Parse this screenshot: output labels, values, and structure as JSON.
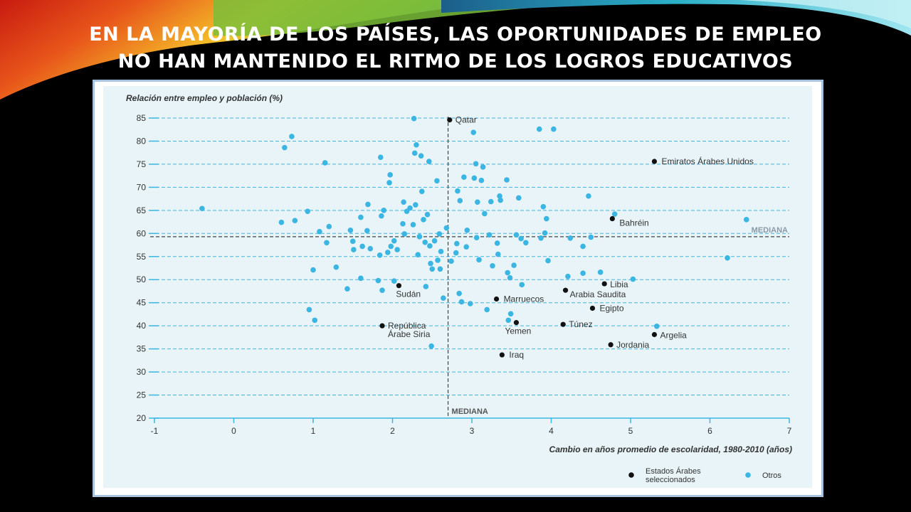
{
  "slide": {
    "title_line1": "EN LA MAYORÍA DE LOS PAÍSES, LAS OPORTUNIDADES DE EMPLEO",
    "title_line2": "NO HAN MANTENIDO EL RITMO DE LOS LOGROS EDUCATIVOS"
  },
  "chart_data": {
    "type": "scatter",
    "ylabel": "Relación entre empleo y población (%)",
    "xlabel": "Cambio en años promedio de escolaridad, 1980-2010 (años)",
    "xlim": [
      -1,
      7
    ],
    "ylim": [
      20,
      85
    ],
    "x_ticks": [
      -1,
      0,
      1,
      2,
      3,
      4,
      5,
      6,
      7
    ],
    "y_ticks": [
      20,
      25,
      30,
      35,
      40,
      45,
      50,
      55,
      60,
      65,
      70,
      75,
      80,
      85
    ],
    "grid": "horizontal dashed",
    "median_x": 2.7,
    "median_y": 59.3,
    "median_x_label": "MEDIANA",
    "median_y_label": "MEDIANA",
    "legend_position": "bottom-right",
    "series": [
      {
        "name": "Estados Árabes seleccionados",
        "legend_lines": [
          "Estados Árabes",
          "seleccionados"
        ],
        "color": "#111111",
        "points": [
          {
            "x": 2.72,
            "y": 84.6,
            "label": "Qatar"
          },
          {
            "x": 5.3,
            "y": 75.6,
            "label": "Emiratos Árabes Unidos"
          },
          {
            "x": 4.77,
            "y": 63.2,
            "label": "Bahréin"
          },
          {
            "x": 4.67,
            "y": 49.1,
            "label": "Libia"
          },
          {
            "x": 4.18,
            "y": 47.7,
            "label": "Arabia Saudita"
          },
          {
            "x": 2.08,
            "y": 48.7,
            "label": "Sudán"
          },
          {
            "x": 3.31,
            "y": 45.8,
            "label": "Marruecos"
          },
          {
            "x": 4.52,
            "y": 43.8,
            "label": "Egipto"
          },
          {
            "x": 1.87,
            "y": 40.0,
            "label": "República Árabe Siria",
            "label_lines": [
              "República",
              "Árabe Siria"
            ]
          },
          {
            "x": 3.56,
            "y": 40.7,
            "label": "Yemen"
          },
          {
            "x": 4.15,
            "y": 40.3,
            "label": "Túnez"
          },
          {
            "x": 5.3,
            "y": 38.1,
            "label": "Argelia"
          },
          {
            "x": 4.75,
            "y": 35.9,
            "label": "Jordania"
          },
          {
            "x": 3.38,
            "y": 33.7,
            "label": "Iraq"
          }
        ]
      },
      {
        "name": "Otros",
        "legend_lines": [
          "Otros"
        ],
        "color": "#3bb6e3",
        "points": [
          {
            "x": -0.4,
            "y": 65.4
          },
          {
            "x": 0.6,
            "y": 62.4
          },
          {
            "x": 0.64,
            "y": 78.6
          },
          {
            "x": 0.73,
            "y": 81.0
          },
          {
            "x": 0.77,
            "y": 62.8
          },
          {
            "x": 0.93,
            "y": 64.8
          },
          {
            "x": 0.95,
            "y": 43.5
          },
          {
            "x": 1.0,
            "y": 52.1
          },
          {
            "x": 1.02,
            "y": 41.2
          },
          {
            "x": 1.08,
            "y": 60.4
          },
          {
            "x": 1.15,
            "y": 75.3
          },
          {
            "x": 1.17,
            "y": 58.0
          },
          {
            "x": 1.2,
            "y": 61.5
          },
          {
            "x": 1.29,
            "y": 52.7
          },
          {
            "x": 1.43,
            "y": 48.0
          },
          {
            "x": 1.47,
            "y": 60.7
          },
          {
            "x": 1.5,
            "y": 58.3
          },
          {
            "x": 1.51,
            "y": 56.5
          },
          {
            "x": 1.6,
            "y": 63.5
          },
          {
            "x": 1.6,
            "y": 50.3
          },
          {
            "x": 1.62,
            "y": 57.2
          },
          {
            "x": 1.68,
            "y": 60.6
          },
          {
            "x": 1.69,
            "y": 66.3
          },
          {
            "x": 1.72,
            "y": 56.7
          },
          {
            "x": 1.82,
            "y": 49.8
          },
          {
            "x": 1.84,
            "y": 55.3
          },
          {
            "x": 1.85,
            "y": 76.5
          },
          {
            "x": 1.86,
            "y": 63.8
          },
          {
            "x": 1.87,
            "y": 47.7
          },
          {
            "x": 1.89,
            "y": 65.0
          },
          {
            "x": 1.94,
            "y": 55.9
          },
          {
            "x": 1.96,
            "y": 71.0
          },
          {
            "x": 1.97,
            "y": 72.7
          },
          {
            "x": 1.98,
            "y": 57.2
          },
          {
            "x": 2.02,
            "y": 58.4
          },
          {
            "x": 2.02,
            "y": 49.7
          },
          {
            "x": 2.06,
            "y": 56.5
          },
          {
            "x": 2.13,
            "y": 62.1
          },
          {
            "x": 2.14,
            "y": 66.8
          },
          {
            "x": 2.15,
            "y": 59.9
          },
          {
            "x": 2.18,
            "y": 64.8
          },
          {
            "x": 2.22,
            "y": 65.5
          },
          {
            "x": 2.26,
            "y": 61.9
          },
          {
            "x": 2.27,
            "y": 84.9
          },
          {
            "x": 2.28,
            "y": 77.4
          },
          {
            "x": 2.29,
            "y": 66.2
          },
          {
            "x": 2.3,
            "y": 79.2
          },
          {
            "x": 2.32,
            "y": 55.4
          },
          {
            "x": 2.34,
            "y": 59.3
          },
          {
            "x": 2.36,
            "y": 76.8
          },
          {
            "x": 2.37,
            "y": 69.1
          },
          {
            "x": 2.39,
            "y": 63.0
          },
          {
            "x": 2.41,
            "y": 58.1
          },
          {
            "x": 2.42,
            "y": 48.5
          },
          {
            "x": 2.44,
            "y": 64.1
          },
          {
            "x": 2.46,
            "y": 75.6
          },
          {
            "x": 2.47,
            "y": 57.3
          },
          {
            "x": 2.48,
            "y": 53.5
          },
          {
            "x": 2.49,
            "y": 35.6
          },
          {
            "x": 2.5,
            "y": 52.3
          },
          {
            "x": 2.53,
            "y": 58.4
          },
          {
            "x": 2.56,
            "y": 71.4
          },
          {
            "x": 2.57,
            "y": 54.2
          },
          {
            "x": 2.59,
            "y": 59.9
          },
          {
            "x": 2.6,
            "y": 52.3
          },
          {
            "x": 2.61,
            "y": 56.1
          },
          {
            "x": 2.64,
            "y": 46.0
          },
          {
            "x": 2.68,
            "y": 61.2
          },
          {
            "x": 2.74,
            "y": 54.0
          },
          {
            "x": 2.8,
            "y": 55.8
          },
          {
            "x": 2.81,
            "y": 57.8
          },
          {
            "x": 2.82,
            "y": 69.2
          },
          {
            "x": 2.84,
            "y": 47.0
          },
          {
            "x": 2.85,
            "y": 67.1
          },
          {
            "x": 2.87,
            "y": 45.2
          },
          {
            "x": 2.9,
            "y": 72.2
          },
          {
            "x": 2.93,
            "y": 57.1
          },
          {
            "x": 2.94,
            "y": 60.7
          },
          {
            "x": 2.98,
            "y": 44.8
          },
          {
            "x": 3.02,
            "y": 81.9
          },
          {
            "x": 3.03,
            "y": 72.0
          },
          {
            "x": 3.05,
            "y": 75.1
          },
          {
            "x": 3.06,
            "y": 59.1
          },
          {
            "x": 3.07,
            "y": 66.8
          },
          {
            "x": 3.09,
            "y": 54.3
          },
          {
            "x": 3.12,
            "y": 71.5
          },
          {
            "x": 3.14,
            "y": 74.4
          },
          {
            "x": 3.16,
            "y": 64.3
          },
          {
            "x": 3.19,
            "y": 43.5
          },
          {
            "x": 3.22,
            "y": 59.7
          },
          {
            "x": 3.24,
            "y": 66.9
          },
          {
            "x": 3.26,
            "y": 53.0
          },
          {
            "x": 3.32,
            "y": 57.9
          },
          {
            "x": 3.33,
            "y": 55.5
          },
          {
            "x": 3.35,
            "y": 68.1
          },
          {
            "x": 3.36,
            "y": 67.2
          },
          {
            "x": 3.44,
            "y": 71.6
          },
          {
            "x": 3.45,
            "y": 51.5
          },
          {
            "x": 3.46,
            "y": 41.2
          },
          {
            "x": 3.48,
            "y": 50.4
          },
          {
            "x": 3.49,
            "y": 42.6
          },
          {
            "x": 3.53,
            "y": 53.1
          },
          {
            "x": 3.56,
            "y": 59.7
          },
          {
            "x": 3.59,
            "y": 67.7
          },
          {
            "x": 3.62,
            "y": 58.9
          },
          {
            "x": 3.63,
            "y": 48.9
          },
          {
            "x": 3.68,
            "y": 58.0
          },
          {
            "x": 3.85,
            "y": 82.6
          },
          {
            "x": 3.87,
            "y": 59.0
          },
          {
            "x": 3.9,
            "y": 65.8
          },
          {
            "x": 3.92,
            "y": 60.1
          },
          {
            "x": 3.94,
            "y": 63.2
          },
          {
            "x": 3.96,
            "y": 54.1
          },
          {
            "x": 4.03,
            "y": 82.6
          },
          {
            "x": 4.21,
            "y": 50.7
          },
          {
            "x": 4.24,
            "y": 59.0
          },
          {
            "x": 4.4,
            "y": 51.4
          },
          {
            "x": 4.4,
            "y": 57.2
          },
          {
            "x": 4.47,
            "y": 68.1
          },
          {
            "x": 4.5,
            "y": 59.2
          },
          {
            "x": 4.62,
            "y": 51.6
          },
          {
            "x": 4.8,
            "y": 64.2
          },
          {
            "x": 5.03,
            "y": 50.1
          },
          {
            "x": 5.33,
            "y": 39.9
          },
          {
            "x": 6.22,
            "y": 54.7
          },
          {
            "x": 6.46,
            "y": 63.0
          }
        ]
      }
    ]
  }
}
